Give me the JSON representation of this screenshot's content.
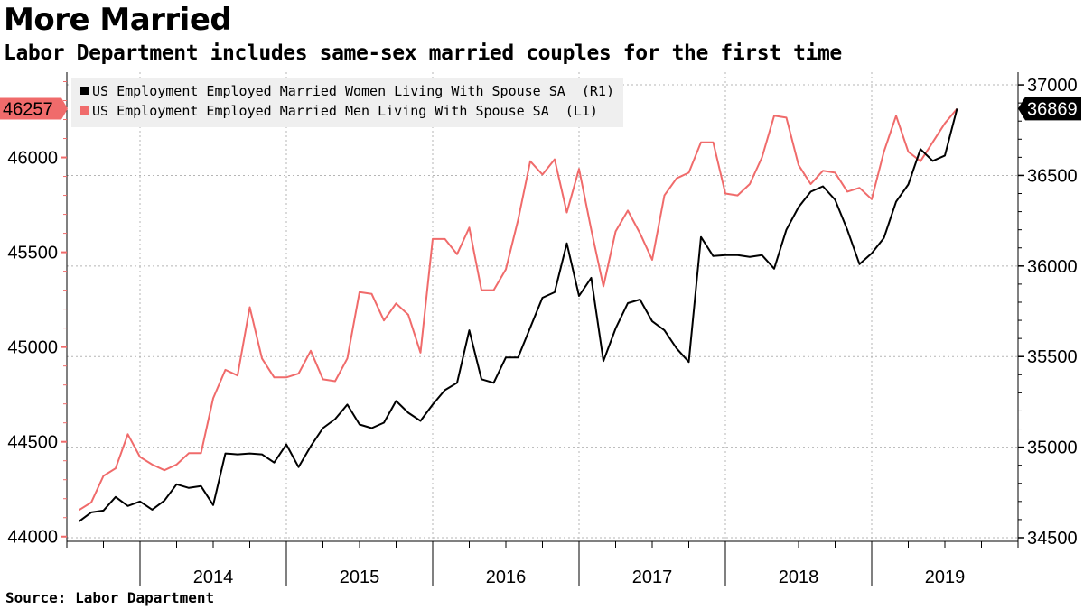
{
  "title": "More Married",
  "subtitle": "Labor Department includes same-sex married couples for the first time",
  "source": "Source: Labor Dapartment",
  "colors": {
    "women": "#000000",
    "men": "#f06b6b",
    "grid": "#b5b5b5"
  },
  "chart_data": {
    "type": "line",
    "x_year_labels": [
      "2014",
      "2015",
      "2016",
      "2017",
      "2018",
      "2019"
    ],
    "x_range": [
      "2013-07",
      "2020-01"
    ],
    "y_left": {
      "min": 43975,
      "max": 46450,
      "ticks": [
        "44000",
        "44500",
        "45000",
        "45500",
        "46000"
      ]
    },
    "y_right": {
      "min": 34480,
      "max": 37070,
      "ticks": [
        "34500",
        "35000",
        "35500",
        "36000",
        "36500",
        "37000"
      ]
    },
    "grid": true,
    "legend_position": "top-left",
    "series": [
      {
        "name": "US Employment Employed Married Women Living With Spouse SA  (R1)",
        "axis": "right",
        "last_label": "36869",
        "start": "2013-08",
        "values": [
          34590,
          34640,
          34650,
          34725,
          34675,
          34700,
          34655,
          34705,
          34795,
          34775,
          34785,
          34680,
          34965,
          34960,
          34965,
          34960,
          34915,
          35015,
          34890,
          35005,
          35105,
          35155,
          35235,
          35125,
          35105,
          35135,
          35255,
          35190,
          35145,
          35235,
          35315,
          35355,
          35645,
          35375,
          35355,
          35495,
          35495,
          35660,
          35825,
          35855,
          36125,
          35835,
          35935,
          35475,
          35655,
          35795,
          35815,
          35695,
          35645,
          35545,
          35470,
          36160,
          36055,
          36060,
          36060,
          36050,
          36060,
          35985,
          36200,
          36325,
          36410,
          36440,
          36365,
          36200,
          36010,
          36070,
          36155,
          36355,
          36450,
          36645,
          36580,
          36610,
          36869
        ]
      },
      {
        "name": "US Employment Employed Married Men Living With Spouse SA  (L1)",
        "axis": "left",
        "last_label": "46257",
        "start": "2013-08",
        "values": [
          44140,
          44180,
          44320,
          44360,
          44540,
          44420,
          44380,
          44350,
          44380,
          44440,
          44440,
          44730,
          44880,
          44850,
          45210,
          44940,
          44840,
          44840,
          44860,
          44980,
          44830,
          44820,
          44940,
          45290,
          45280,
          45140,
          45230,
          45170,
          44970,
          45570,
          45570,
          45490,
          45630,
          45300,
          45300,
          45410,
          45670,
          45980,
          45910,
          45990,
          45710,
          45940,
          45620,
          45320,
          45610,
          45720,
          45600,
          45460,
          45800,
          45890,
          45920,
          46080,
          46080,
          45810,
          45800,
          45860,
          46000,
          46220,
          46210,
          45960,
          45860,
          45930,
          45920,
          45820,
          45840,
          45780,
          46030,
          46220,
          46030,
          45980,
          46080,
          46180,
          46257
        ]
      }
    ]
  }
}
